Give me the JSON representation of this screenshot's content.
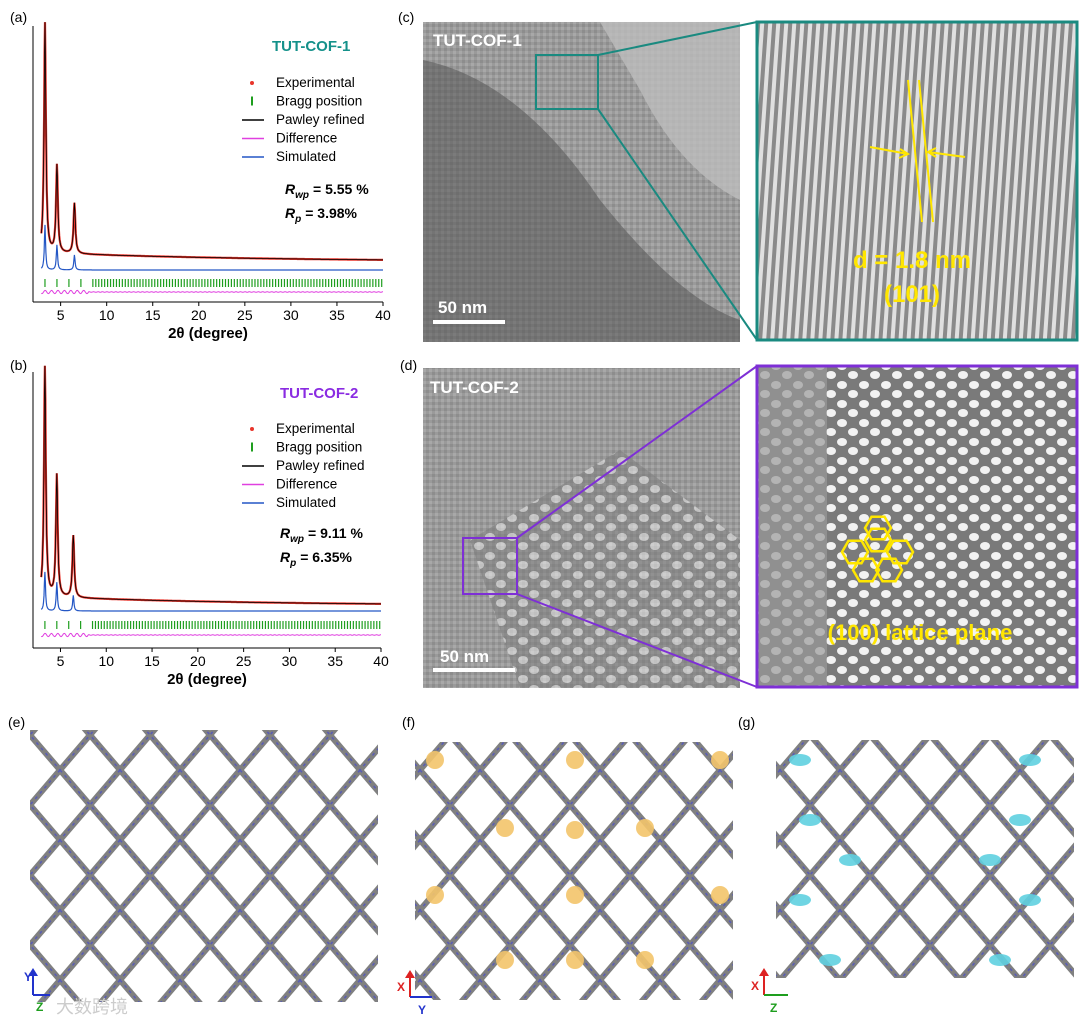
{
  "panels": {
    "a": {
      "label": "(a)",
      "title": "TUT-COF-1",
      "title_color": "#14918a",
      "rwp": "= 5.55 %",
      "rp": "= 3.98%"
    },
    "b": {
      "label": "(b)",
      "title": "TUT-COF-2",
      "title_color": "#8a2be2",
      "rwp": "= 9.11 %",
      "rp": "= 6.35%"
    },
    "c": {
      "label": "(c)",
      "sample": "TUT-COF-1",
      "scale": "50 nm",
      "spacing": "d = 1.8 nm",
      "plane": "(101)",
      "frame_color": "#1a8a80"
    },
    "d": {
      "label": "(d)",
      "sample": "TUT-COF-2",
      "scale": "50 nm",
      "plane_label": "(100) lattice plane",
      "frame_color": "#7e2fd6"
    },
    "e": {
      "label": "(e)",
      "axis1": "Y",
      "axis2": "Z"
    },
    "f": {
      "label": "(f)",
      "axis1": "X",
      "axis2": "Y"
    },
    "g": {
      "label": "(g)",
      "axis1": "X",
      "axis2": "Z"
    }
  },
  "legend": [
    "Experimental",
    "Bragg position",
    "Pawley refined",
    "Difference",
    "Simulated"
  ],
  "rwp_symbol": "R",
  "rwp_sub": "wp",
  "rp_sub": "p",
  "watermark": "大数跨境",
  "colors": {
    "experimental": "#e8352b",
    "bragg": "#1e9e1e",
    "pawley": "#000000",
    "difference": "#e040e0",
    "simulated": "#2457c5",
    "highlight": "#ffe600"
  },
  "chart_data": [
    {
      "type": "line",
      "title": "TUT-COF-1",
      "xlabel": "2θ (degree)",
      "ylabel": "",
      "xlim": [
        2,
        40
      ],
      "x_ticks": [
        5,
        10,
        15,
        20,
        25,
        30,
        35,
        40
      ],
      "peaks": [
        {
          "x": 3.3,
          "experimental": 100,
          "simulated": 18
        },
        {
          "x": 4.6,
          "experimental": 38,
          "simulated": 10
        },
        {
          "x": 6.5,
          "experimental": 22,
          "simulated": 6
        }
      ],
      "background_level": 4
    },
    {
      "type": "line",
      "title": "TUT-COF-2",
      "xlabel": "2θ (degree)",
      "ylabel": "",
      "xlim": [
        2,
        40
      ],
      "x_ticks": [
        5,
        10,
        15,
        20,
        25,
        30,
        35,
        40
      ],
      "peaks": [
        {
          "x": 3.3,
          "experimental": 100,
          "simulated": 15
        },
        {
          "x": 4.6,
          "experimental": 53,
          "simulated": 11
        },
        {
          "x": 6.4,
          "experimental": 27,
          "simulated": 6
        }
      ],
      "background_level": 4
    }
  ]
}
